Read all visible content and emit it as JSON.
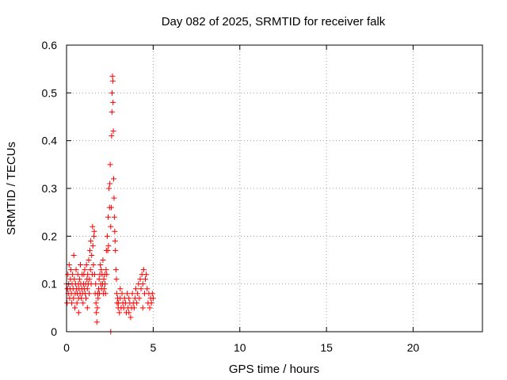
{
  "chart_data": {
    "type": "scatter",
    "title": "Day 082 of 2025, SRMTID for receiver falk",
    "xlabel": "GPS time / hours",
    "ylabel": "SRMTID / TECUs",
    "xlim": [
      0,
      24
    ],
    "ylim": [
      0,
      0.6
    ],
    "xticks": [
      0,
      5,
      10,
      15,
      20
    ],
    "xtick_labels": [
      "0",
      "5",
      "10",
      "15",
      "20"
    ],
    "yticks": [
      0,
      0.1,
      0.2,
      0.3,
      0.4,
      0.5,
      0.6
    ],
    "ytick_labels": [
      "0",
      "0.1",
      "0.2",
      "0.3",
      "0.4",
      "0.5",
      "0.6"
    ],
    "grid": true,
    "marker": "+",
    "colors": {
      "points": "#ff0000",
      "grid": "#a0a0a0",
      "axes": "#000000"
    },
    "series": [
      {
        "name": "SRMTID",
        "points": [
          [
            0.0,
            0.1
          ],
          [
            0.03,
            0.06
          ],
          [
            0.05,
            0.09
          ],
          [
            0.08,
            0.12
          ],
          [
            0.1,
            0.08
          ],
          [
            0.12,
            0.1
          ],
          [
            0.15,
            0.14
          ],
          [
            0.18,
            0.07
          ],
          [
            0.2,
            0.09
          ],
          [
            0.22,
            0.11
          ],
          [
            0.25,
            0.13
          ],
          [
            0.28,
            0.08
          ],
          [
            0.3,
            0.06
          ],
          [
            0.32,
            0.1
          ],
          [
            0.35,
            0.12
          ],
          [
            0.38,
            0.09
          ],
          [
            0.4,
            0.07
          ],
          [
            0.42,
            0.16
          ],
          [
            0.45,
            0.11
          ],
          [
            0.48,
            0.05
          ],
          [
            0.5,
            0.08
          ],
          [
            0.52,
            0.1
          ],
          [
            0.55,
            0.13
          ],
          [
            0.58,
            0.09
          ],
          [
            0.6,
            0.06
          ],
          [
            0.62,
            0.08
          ],
          [
            0.65,
            0.12
          ],
          [
            0.68,
            0.1
          ],
          [
            0.7,
            0.07
          ],
          [
            0.72,
            0.09
          ],
          [
            0.75,
            0.11
          ],
          [
            0.78,
            0.08
          ],
          [
            0.8,
            0.14
          ],
          [
            0.82,
            0.1
          ],
          [
            0.85,
            0.07
          ],
          [
            0.88,
            0.09
          ],
          [
            0.9,
            0.12
          ],
          [
            0.92,
            0.08
          ],
          [
            0.95,
            0.06
          ],
          [
            0.98,
            0.1
          ],
          [
            1.0,
            0.12
          ],
          [
            1.02,
            0.09
          ],
          [
            1.05,
            0.13
          ],
          [
            1.08,
            0.08
          ],
          [
            1.1,
            0.1
          ],
          [
            1.12,
            0.07
          ],
          [
            1.15,
            0.14
          ],
          [
            1.18,
            0.11
          ],
          [
            1.2,
            0.09
          ],
          [
            1.22,
            0.12
          ],
          [
            1.25,
            0.1
          ],
          [
            1.28,
            0.15
          ],
          [
            1.3,
            0.08
          ],
          [
            1.32,
            0.11
          ],
          [
            1.35,
            0.17
          ],
          [
            1.38,
            0.13
          ],
          [
            1.4,
            0.19
          ],
          [
            1.42,
            0.1
          ],
          [
            1.45,
            0.16
          ],
          [
            1.48,
            0.12
          ],
          [
            1.5,
            0.22
          ],
          [
            1.52,
            0.18
          ],
          [
            1.55,
            0.14
          ],
          [
            1.58,
            0.2
          ],
          [
            1.6,
            0.21
          ],
          [
            1.62,
            0.12
          ],
          [
            1.65,
            0.08
          ],
          [
            1.68,
            0.1
          ],
          [
            1.7,
            0.06
          ],
          [
            1.72,
            0.04
          ],
          [
            1.75,
            0.02
          ],
          [
            1.78,
            0.05
          ],
          [
            1.8,
            0.08
          ],
          [
            1.82,
            0.07
          ],
          [
            1.85,
            0.09
          ],
          [
            1.88,
            0.11
          ],
          [
            1.9,
            0.08
          ],
          [
            1.92,
            0.12
          ],
          [
            1.95,
            0.14
          ],
          [
            1.98,
            0.1
          ],
          [
            2.0,
            0.13
          ],
          [
            2.02,
            0.09
          ],
          [
            2.05,
            0.12
          ],
          [
            2.08,
            0.1
          ],
          [
            2.1,
            0.15
          ],
          [
            2.12,
            0.08
          ],
          [
            2.15,
            0.11
          ],
          [
            2.18,
            0.09
          ],
          [
            2.2,
            0.12
          ],
          [
            2.22,
            0.1
          ],
          [
            2.25,
            0.08
          ],
          [
            2.28,
            0.13
          ],
          [
            2.3,
            0.17
          ],
          [
            2.32,
            0.12
          ],
          [
            2.35,
            0.2
          ],
          [
            2.38,
            0.17
          ],
          [
            2.4,
            0.24
          ],
          [
            2.42,
            0.18
          ],
          [
            2.45,
            0.3
          ],
          [
            2.48,
            0.26
          ],
          [
            2.5,
            0.31
          ],
          [
            2.52,
            0.35
          ],
          [
            2.55,
            0.22
          ],
          [
            2.58,
            0.26
          ],
          [
            2.6,
            0.41
          ],
          [
            2.62,
            0.46
          ],
          [
            2.63,
            0.5
          ],
          [
            2.65,
            0.535
          ],
          [
            2.67,
            0.525
          ],
          [
            2.68,
            0.48
          ],
          [
            2.7,
            0.42
          ],
          [
            2.72,
            0.32
          ],
          [
            2.74,
            0.28
          ],
          [
            2.76,
            0.24
          ],
          [
            2.78,
            0.21
          ],
          [
            2.8,
            0.19
          ],
          [
            2.82,
            0.17
          ],
          [
            2.85,
            0.13
          ],
          [
            2.88,
            0.11
          ],
          [
            2.9,
            0.08
          ],
          [
            2.92,
            0.06
          ],
          [
            2.95,
            0.07
          ],
          [
            2.98,
            0.05
          ],
          [
            3.0,
            0.06
          ],
          [
            3.05,
            0.04
          ],
          [
            3.1,
            0.07
          ],
          [
            3.15,
            0.05
          ],
          [
            3.2,
            0.08
          ],
          [
            3.25,
            0.06
          ],
          [
            3.3,
            0.05
          ],
          [
            3.35,
            0.07
          ],
          [
            3.4,
            0.06
          ],
          [
            3.45,
            0.04
          ],
          [
            3.5,
            0.08
          ],
          [
            3.55,
            0.05
          ],
          [
            3.6,
            0.07
          ],
          [
            3.65,
            0.06
          ],
          [
            3.7,
            0.03
          ],
          [
            3.75,
            0.05
          ],
          [
            3.8,
            0.08
          ],
          [
            3.85,
            0.06
          ],
          [
            3.9,
            0.05
          ],
          [
            3.95,
            0.07
          ],
          [
            4.0,
            0.09
          ],
          [
            4.05,
            0.06
          ],
          [
            4.1,
            0.08
          ],
          [
            4.15,
            0.1
          ],
          [
            4.2,
            0.07
          ],
          [
            4.25,
            0.11
          ],
          [
            4.3,
            0.09
          ],
          [
            4.35,
            0.12
          ],
          [
            4.4,
            0.1
          ],
          [
            4.45,
            0.13
          ],
          [
            4.5,
            0.08
          ],
          [
            4.55,
            0.11
          ],
          [
            4.6,
            0.12
          ],
          [
            4.65,
            0.09
          ],
          [
            4.7,
            0.06
          ],
          [
            4.75,
            0.08
          ],
          [
            4.8,
            0.05
          ],
          [
            4.85,
            0.07
          ],
          [
            4.9,
            0.06
          ],
          [
            4.95,
            0.08
          ],
          [
            5.0,
            0.07
          ],
          [
            2.55,
            0.0
          ],
          [
            1.2,
            0.05
          ],
          [
            0.7,
            0.04
          ],
          [
            3.1,
            0.09
          ],
          [
            3.6,
            0.04
          ],
          [
            4.4,
            0.05
          ]
        ]
      }
    ]
  }
}
